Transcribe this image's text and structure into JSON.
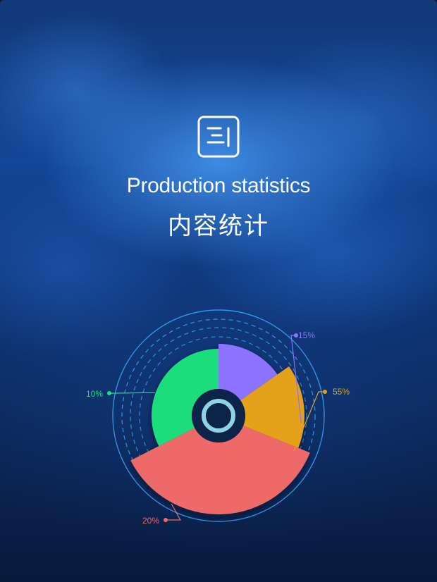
{
  "header": {
    "icon": "document-list-icon",
    "title_en": "Production statistics",
    "title_cn": "内容统计"
  },
  "chart_data": {
    "type": "pie",
    "style": "rose",
    "title": "Production statistics",
    "subtitle": "内容统计",
    "slices": [
      {
        "label": "15%",
        "value": 15,
        "color": "#8b73ff"
      },
      {
        "label": "55%",
        "value": 55,
        "color": "#e3a11a"
      },
      {
        "label": "20%",
        "value": 20,
        "color": "#ee6a68"
      },
      {
        "label": "10%",
        "value": 10,
        "color": "#1ddd7c"
      }
    ],
    "center_ring_color": "#8fd3e6",
    "guide_ring_color": "#2f9be8",
    "grid": false,
    "legend": "none"
  }
}
